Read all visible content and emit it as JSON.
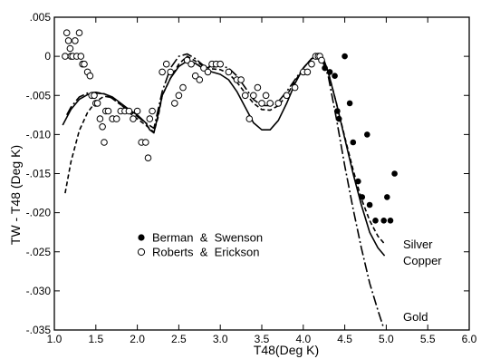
{
  "chart_data": {
    "type": "scatter",
    "xlabel": "T48(Deg K)",
    "ylabel": "TW - T48 (Deg K)",
    "xlim": [
      1.0,
      6.0
    ],
    "ylim": [
      -0.035,
      0.005
    ],
    "x_ticks": [
      "1.0",
      "1.5",
      "2.0",
      "2.5",
      "3.0",
      "3.5",
      "4.0",
      "4.5",
      "5.0",
      "5.5",
      "6.0"
    ],
    "y_ticks": [
      ".005",
      "0",
      "-.005",
      "-.010",
      "-.015",
      "-.020",
      "-.025",
      "-.030",
      "-.035"
    ],
    "grid": false,
    "legend_position": "lower-left",
    "point_series": [
      {
        "name": "Berman & Swenson",
        "marker": "filled-circle",
        "points": [
          [
            4.26,
            -0.0015
          ],
          [
            4.32,
            -0.002
          ],
          [
            4.38,
            -0.0025
          ],
          [
            4.41,
            -0.007
          ],
          [
            4.43,
            -0.008
          ],
          [
            4.5,
            0.0
          ],
          [
            4.56,
            -0.006
          ],
          [
            4.6,
            -0.011
          ],
          [
            4.66,
            -0.016
          ],
          [
            4.71,
            -0.018
          ],
          [
            4.77,
            -0.01
          ],
          [
            4.8,
            -0.019
          ],
          [
            4.87,
            -0.021
          ],
          [
            4.97,
            -0.021
          ],
          [
            5.01,
            -0.018
          ],
          [
            5.05,
            -0.021
          ],
          [
            5.1,
            -0.015
          ]
        ]
      },
      {
        "name": "Roberts & Erickson",
        "marker": "open-circle",
        "points": [
          [
            1.13,
            0.0
          ],
          [
            1.15,
            0.003
          ],
          [
            1.17,
            0.002
          ],
          [
            1.19,
            0.001
          ],
          [
            1.2,
            0.0
          ],
          [
            1.22,
            0.0
          ],
          [
            1.25,
            0.002
          ],
          [
            1.27,
            0.0
          ],
          [
            1.3,
            0.003
          ],
          [
            1.32,
            0.0
          ],
          [
            1.34,
            -0.001
          ],
          [
            1.36,
            -0.001
          ],
          [
            1.4,
            -0.002
          ],
          [
            1.43,
            -0.0025
          ],
          [
            1.45,
            -0.005
          ],
          [
            1.48,
            -0.005
          ],
          [
            1.5,
            -0.006
          ],
          [
            1.52,
            -0.006
          ],
          [
            1.55,
            -0.008
          ],
          [
            1.58,
            -0.009
          ],
          [
            1.6,
            -0.011
          ],
          [
            1.62,
            -0.007
          ],
          [
            1.65,
            -0.007
          ],
          [
            1.7,
            -0.008
          ],
          [
            1.75,
            -0.008
          ],
          [
            1.8,
            -0.007
          ],
          [
            1.85,
            -0.007
          ],
          [
            1.9,
            -0.007
          ],
          [
            1.95,
            -0.008
          ],
          [
            2.0,
            -0.007
          ],
          [
            2.05,
            -0.011
          ],
          [
            2.1,
            -0.011
          ],
          [
            2.13,
            -0.013
          ],
          [
            2.15,
            -0.008
          ],
          [
            2.18,
            -0.007
          ],
          [
            2.3,
            -0.002
          ],
          [
            2.35,
            -0.001
          ],
          [
            2.4,
            -0.002
          ],
          [
            2.45,
            -0.006
          ],
          [
            2.5,
            -0.005
          ],
          [
            2.55,
            -0.004
          ],
          [
            2.6,
            -0.0005
          ],
          [
            2.65,
            -0.001
          ],
          [
            2.7,
            -0.0025
          ],
          [
            2.75,
            -0.003
          ],
          [
            2.8,
            -0.0015
          ],
          [
            2.85,
            -0.002
          ],
          [
            2.9,
            -0.001
          ],
          [
            2.95,
            -0.001
          ],
          [
            3.0,
            -0.001
          ],
          [
            3.1,
            -0.002
          ],
          [
            3.2,
            -0.003
          ],
          [
            3.25,
            -0.003
          ],
          [
            3.3,
            -0.005
          ],
          [
            3.35,
            -0.008
          ],
          [
            3.4,
            -0.005
          ],
          [
            3.45,
            -0.004
          ],
          [
            3.5,
            -0.006
          ],
          [
            3.55,
            -0.005
          ],
          [
            3.6,
            -0.006
          ],
          [
            3.7,
            -0.006
          ],
          [
            3.8,
            -0.005
          ],
          [
            3.9,
            -0.004
          ],
          [
            4.0,
            -0.002
          ],
          [
            4.05,
            -0.002
          ],
          [
            4.1,
            -0.001
          ],
          [
            4.15,
            0.0
          ],
          [
            4.18,
            0.0
          ],
          [
            4.2,
            0.0
          ],
          [
            4.22,
            -0.0005
          ]
        ]
      }
    ],
    "curve_series": [
      {
        "name": "",
        "style": "solid",
        "points": [
          [
            1.1,
            -0.0088
          ],
          [
            1.2,
            -0.0068
          ],
          [
            1.3,
            -0.0055
          ],
          [
            1.4,
            -0.0049
          ],
          [
            1.5,
            -0.0047
          ],
          [
            1.6,
            -0.0048
          ],
          [
            1.7,
            -0.0052
          ],
          [
            1.8,
            -0.006
          ],
          [
            1.9,
            -0.0068
          ],
          [
            2.0,
            -0.0075
          ],
          [
            2.1,
            -0.0085
          ],
          [
            2.15,
            -0.0094
          ],
          [
            2.2,
            -0.0098
          ],
          [
            2.25,
            -0.0075
          ],
          [
            2.3,
            -0.005
          ],
          [
            2.4,
            -0.0028
          ],
          [
            2.5,
            -0.0013
          ],
          [
            2.6,
            -0.0006
          ],
          [
            2.7,
            -0.0009
          ],
          [
            2.8,
            -0.0016
          ],
          [
            2.9,
            -0.002
          ],
          [
            3.0,
            -0.0023
          ],
          [
            3.1,
            -0.003
          ],
          [
            3.2,
            -0.0045
          ],
          [
            3.3,
            -0.0065
          ],
          [
            3.4,
            -0.0085
          ],
          [
            3.5,
            -0.0094
          ],
          [
            3.6,
            -0.0094
          ],
          [
            3.7,
            -0.0082
          ],
          [
            3.8,
            -0.006
          ],
          [
            3.9,
            -0.0035
          ],
          [
            4.0,
            -0.0015
          ],
          [
            4.1,
            -0.0003
          ],
          [
            4.2,
            0.0
          ],
          [
            4.25,
            -0.0005
          ],
          [
            4.3,
            -0.002
          ],
          [
            4.4,
            -0.006
          ],
          [
            4.5,
            -0.0105
          ],
          [
            4.6,
            -0.015
          ],
          [
            4.7,
            -0.019
          ],
          [
            4.8,
            -0.0225
          ],
          [
            4.9,
            -0.0245
          ],
          [
            4.98,
            -0.0255
          ]
        ]
      },
      {
        "name": "",
        "style": "short-dash",
        "points": [
          [
            1.13,
            -0.0175
          ],
          [
            1.2,
            -0.0135
          ],
          [
            1.3,
            -0.0095
          ],
          [
            1.4,
            -0.0072
          ],
          [
            1.5,
            -0.0058
          ],
          [
            1.6,
            -0.0051
          ],
          [
            1.7,
            -0.0053
          ],
          [
            1.8,
            -0.0062
          ],
          [
            1.9,
            -0.0072
          ],
          [
            2.0,
            -0.008
          ],
          [
            2.1,
            -0.0088
          ],
          [
            2.2,
            -0.0097
          ],
          [
            2.25,
            -0.0078
          ],
          [
            2.3,
            -0.005
          ],
          [
            2.4,
            -0.0028
          ],
          [
            2.5,
            -0.001
          ],
          [
            2.6,
            0.0
          ],
          [
            2.7,
            -0.0006
          ],
          [
            2.8,
            -0.0013
          ],
          [
            2.9,
            -0.0016
          ],
          [
            3.0,
            -0.0017
          ],
          [
            3.1,
            -0.0022
          ],
          [
            3.2,
            -0.0033
          ],
          [
            3.3,
            -0.0047
          ],
          [
            3.4,
            -0.006
          ],
          [
            3.5,
            -0.0068
          ],
          [
            3.6,
            -0.0069
          ],
          [
            3.7,
            -0.0063
          ],
          [
            3.8,
            -0.005
          ],
          [
            3.9,
            -0.0032
          ],
          [
            4.0,
            -0.0015
          ],
          [
            4.1,
            -0.0003
          ],
          [
            4.2,
            0.0003
          ],
          [
            4.3,
            -0.002
          ],
          [
            4.4,
            -0.006
          ],
          [
            4.5,
            -0.0103
          ],
          [
            4.6,
            -0.0145
          ],
          [
            4.7,
            -0.0182
          ],
          [
            4.8,
            -0.021
          ],
          [
            4.9,
            -0.023
          ],
          [
            4.98,
            -0.024
          ]
        ]
      },
      {
        "name": "",
        "style": "dash-dot",
        "points": [
          [
            1.15,
            -0.0075
          ],
          [
            1.2,
            -0.0065
          ],
          [
            1.3,
            -0.0052
          ],
          [
            1.4,
            -0.0047
          ],
          [
            1.5,
            -0.0046
          ],
          [
            1.6,
            -0.0048
          ],
          [
            1.7,
            -0.0054
          ],
          [
            1.8,
            -0.0062
          ],
          [
            1.9,
            -0.007
          ],
          [
            2.0,
            -0.0077
          ],
          [
            2.1,
            -0.0085
          ],
          [
            2.2,
            -0.0092
          ],
          [
            2.3,
            -0.0045
          ],
          [
            2.4,
            -0.0015
          ],
          [
            2.5,
            0.0
          ],
          [
            2.6,
            0.0003
          ],
          [
            2.7,
            -0.0003
          ],
          [
            2.8,
            -0.0012
          ],
          [
            2.9,
            -0.0014
          ],
          [
            3.0,
            -0.0012
          ],
          [
            3.1,
            -0.0015
          ],
          [
            3.2,
            -0.0025
          ],
          [
            3.3,
            -0.004
          ],
          [
            3.4,
            -0.0055
          ],
          [
            3.5,
            -0.0063
          ],
          [
            3.6,
            -0.0063
          ],
          [
            3.7,
            -0.0058
          ],
          [
            3.8,
            -0.0045
          ],
          [
            3.9,
            -0.003
          ],
          [
            4.0,
            -0.0015
          ],
          [
            4.1,
            -0.0003
          ],
          [
            4.2,
            0.0003
          ],
          [
            4.3,
            -0.0025
          ],
          [
            4.4,
            -0.008
          ],
          [
            4.5,
            -0.014
          ],
          [
            4.6,
            -0.0195
          ],
          [
            4.7,
            -0.0245
          ],
          [
            4.8,
            -0.029
          ],
          [
            4.9,
            -0.0325
          ],
          [
            4.97,
            -0.0348
          ]
        ]
      }
    ],
    "legend": [
      {
        "marker": "filled-circle",
        "label": "Berman  &  Swenson"
      },
      {
        "marker": "open-circle",
        "label": "Roberts  &  Erickson"
      }
    ],
    "annotations": [
      "Silver",
      "Copper",
      "Gold"
    ]
  }
}
